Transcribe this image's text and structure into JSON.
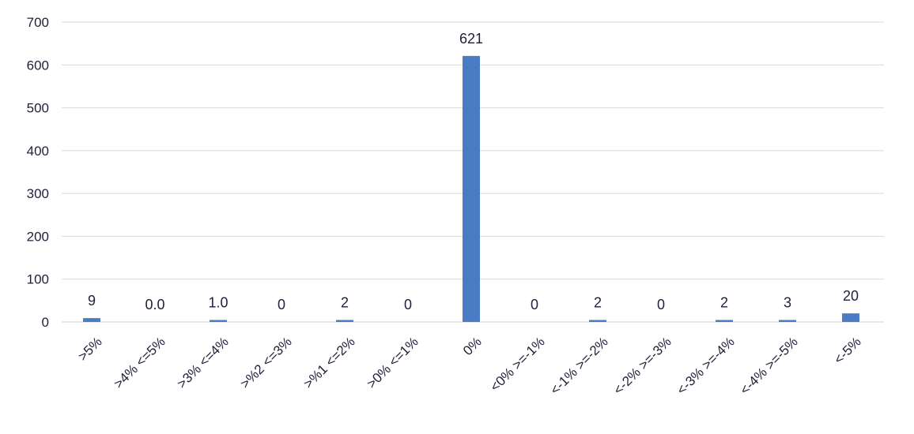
{
  "chart_data": {
    "type": "bar",
    "categories": [
      ">5%",
      ">4% <=5%",
      ">3% <=4%",
      ">%2 <=3%",
      ">%1 <=2%",
      ">0% <=1%",
      "0%",
      "<0% >=-1%",
      "<-1% >=-2%",
      "<-2% >=-3%",
      "<-3% >=-4%",
      "<-4% >=-5%",
      "<-5%"
    ],
    "values": [
      9,
      0,
      1,
      0,
      2,
      0,
      621,
      0,
      2,
      0,
      2,
      3,
      20
    ],
    "data_labels": [
      "9",
      "0.0",
      "1.0",
      "0",
      "2",
      "0",
      "621",
      "0",
      "2",
      "0",
      "2",
      "3",
      "20"
    ],
    "yticks": [
      "0",
      "100",
      "200",
      "300",
      "400",
      "500",
      "600",
      "700"
    ],
    "ylim": [
      0,
      700
    ],
    "grid": true,
    "bar_color": "#4a7cc4",
    "grid_color": "#d9d9d9",
    "text_color": "#1f1f3a"
  }
}
